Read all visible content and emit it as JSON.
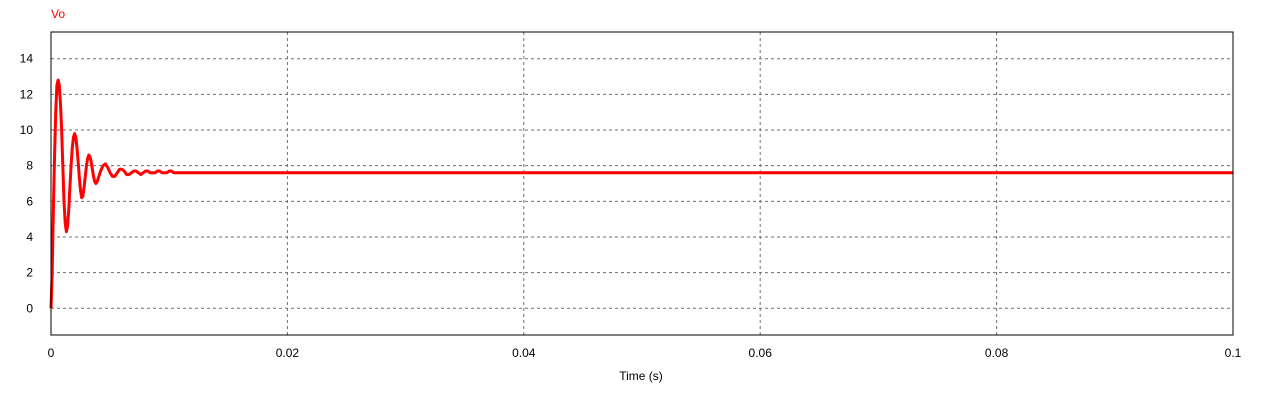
{
  "chart_data": {
    "type": "line",
    "xlabel": "Time (s)",
    "ylabel": "",
    "xlim": [
      0,
      0.1
    ],
    "ylim": [
      -1.5,
      15.5
    ],
    "x_ticks": [
      0,
      0.02,
      0.04,
      0.06,
      0.08,
      0.1
    ],
    "x_tick_labels": [
      "0",
      "0.02",
      "0.04",
      "0.06",
      "0.08",
      "0.1"
    ],
    "y_ticks": [
      0,
      2,
      4,
      6,
      8,
      10,
      12,
      14
    ],
    "y_tick_labels": [
      "0",
      "2",
      "4",
      "6",
      "8",
      "10",
      "12",
      "14"
    ],
    "grid": true,
    "legend_placement": "top-left",
    "series": [
      {
        "name": "Vo",
        "color": "#ff0000",
        "x": [
          0,
          0.0001,
          0.0002,
          0.0003,
          0.0004,
          0.0005,
          0.0006,
          0.0007,
          0.0008,
          0.0009,
          0.001,
          0.0011,
          0.0012,
          0.0013,
          0.0014,
          0.0015,
          0.0016,
          0.0017,
          0.0018,
          0.0019,
          0.002,
          0.0021,
          0.0022,
          0.0023,
          0.0024,
          0.0025,
          0.0026,
          0.0027,
          0.0028,
          0.0029,
          0.003,
          0.0031,
          0.0032,
          0.0033,
          0.0034,
          0.0035,
          0.0036,
          0.0037,
          0.0038,
          0.0039,
          0.004,
          0.0042,
          0.0044,
          0.0046,
          0.0048,
          0.005,
          0.0052,
          0.0054,
          0.0056,
          0.0058,
          0.006,
          0.0062,
          0.0064,
          0.0066,
          0.0068,
          0.007,
          0.0072,
          0.0074,
          0.0076,
          0.0078,
          0.008,
          0.0082,
          0.0084,
          0.0086,
          0.0088,
          0.009,
          0.0092,
          0.0094,
          0.0096,
          0.0098,
          0.01,
          0.0102,
          0.0104,
          0.0106,
          0.0108,
          0.011,
          0.015,
          0.02,
          0.03,
          0.04,
          0.05,
          0.06,
          0.07,
          0.08,
          0.09,
          0.1
        ],
        "values": [
          0,
          2.0,
          5.5,
          8.5,
          11.0,
          12.5,
          12.8,
          12.5,
          11.5,
          10.0,
          8.0,
          6.0,
          4.8,
          4.3,
          4.6,
          5.5,
          6.8,
          8.0,
          9.0,
          9.6,
          9.8,
          9.6,
          9.0,
          8.2,
          7.3,
          6.6,
          6.2,
          6.3,
          6.8,
          7.4,
          8.0,
          8.4,
          8.6,
          8.5,
          8.2,
          7.8,
          7.4,
          7.1,
          7.0,
          7.1,
          7.3,
          7.7,
          8.0,
          8.1,
          7.9,
          7.6,
          7.4,
          7.4,
          7.6,
          7.8,
          7.8,
          7.7,
          7.5,
          7.5,
          7.6,
          7.7,
          7.7,
          7.6,
          7.5,
          7.6,
          7.7,
          7.7,
          7.6,
          7.6,
          7.6,
          7.7,
          7.7,
          7.6,
          7.6,
          7.6,
          7.7,
          7.7,
          7.6,
          7.6,
          7.6,
          7.6,
          7.6,
          7.6,
          7.6,
          7.6,
          7.6,
          7.6,
          7.6,
          7.6,
          7.6,
          7.6
        ]
      }
    ]
  }
}
